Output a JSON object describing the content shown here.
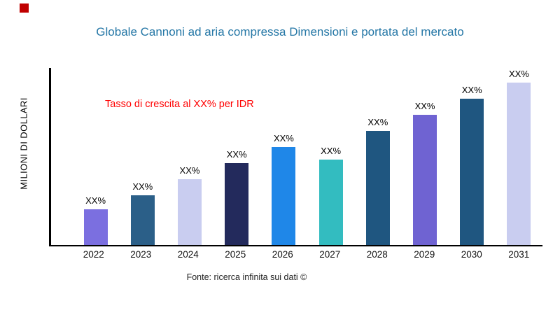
{
  "colors": {
    "title": "#2577A6",
    "annotation": "#FF0000",
    "accent_square": "#C00000",
    "axis": "#000000"
  },
  "chart_data": {
    "type": "bar",
    "title": "Globale Cannoni ad aria compressa Dimensioni e portata del mercato",
    "ylabel": "MILIONI DI DOLLARI",
    "xlabel": "",
    "categories": [
      "2022",
      "2023",
      "2024",
      "2025",
      "2026",
      "2027",
      "2028",
      "2029",
      "2030",
      "2031"
    ],
    "values": [
      20,
      28,
      37,
      46,
      55,
      48,
      64,
      73,
      82,
      91
    ],
    "bar_labels": [
      "XX%",
      "XX%",
      "XX%",
      "XX%",
      "XX%",
      "XX%",
      "XX%",
      "XX%",
      "XX%",
      "XX%"
    ],
    "bar_colors": [
      "#7B6FE0",
      "#2B5F88",
      "#C9CDF0",
      "#232A5C",
      "#1F87E8",
      "#33BCC0",
      "#1F5680",
      "#6F63D2",
      "#1F5680",
      "#C9CDF0"
    ],
    "ylim": [
      0,
      100
    ],
    "grid": false,
    "legend": false,
    "annotation": "Tasso di crescita al XX% per IDR",
    "source": "Fonte: ricerca infinita sui dati ©"
  }
}
